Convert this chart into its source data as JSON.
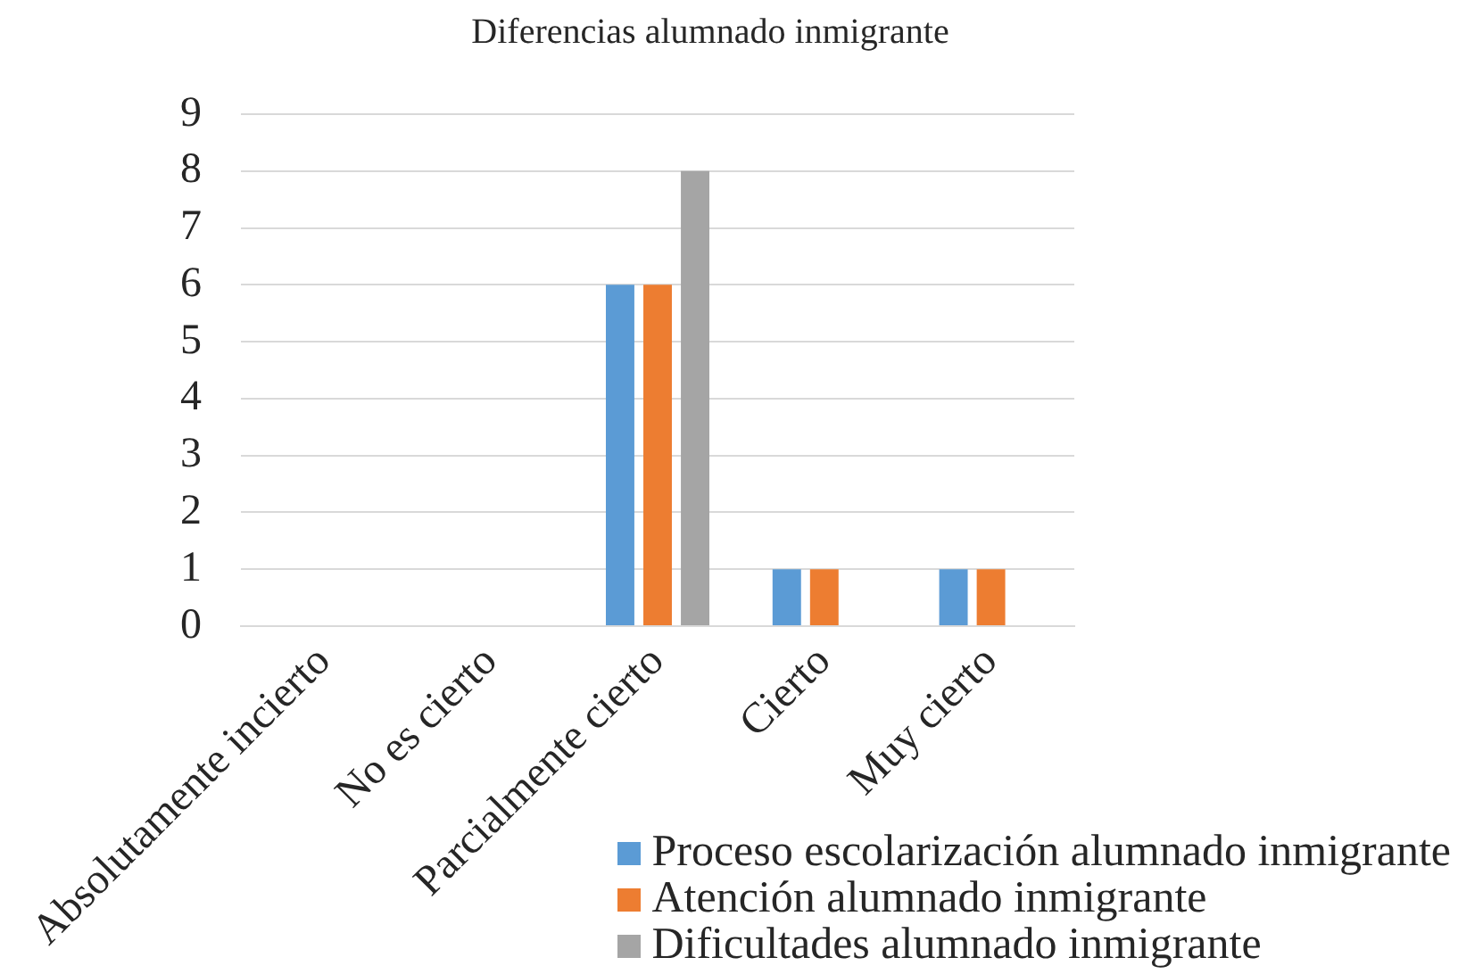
{
  "chart_data": {
    "type": "bar",
    "title": "Diferencias alumnado inmigrante",
    "categories": [
      "Absolutamente incierto",
      "No es cierto",
      "Parcialmente cierto",
      "Cierto",
      "Muy cierto"
    ],
    "series": [
      {
        "name": "Proceso escolarización alumnado inmigrante",
        "color": "#5b9bd5",
        "values": [
          0,
          0,
          6,
          1,
          1
        ]
      },
      {
        "name": "Atención alumnado inmigrante",
        "color": "#ed7d31",
        "values": [
          0,
          0,
          6,
          1,
          1
        ]
      },
      {
        "name": "Dificultades alumnado inmigrante",
        "color": "#a5a5a5",
        "values": [
          0,
          0,
          8,
          0,
          0
        ]
      }
    ],
    "ylim": [
      0,
      9
    ],
    "yticks": [
      0,
      1,
      2,
      3,
      4,
      5,
      6,
      7,
      8,
      9
    ],
    "grid": "y",
    "legend": "bottom right"
  }
}
